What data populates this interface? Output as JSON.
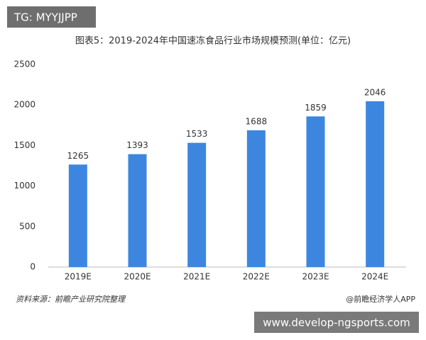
{
  "overlays": {
    "tag": "TG: MYYJJPP",
    "url": "www.develop-ngsports.com"
  },
  "chart_data": {
    "type": "bar",
    "title": "图表5：2019-2024年中国速冻食品行业市场规模预测(单位：亿元)",
    "categories": [
      "2019E",
      "2020E",
      "2021E",
      "2022E",
      "2023E",
      "2024E"
    ],
    "values": [
      1265,
      1393,
      1533,
      1688,
      1859,
      2046
    ],
    "color": "#3d86e0",
    "ylim": [
      0,
      2500
    ],
    "yticks": [
      0,
      500,
      1000,
      1500,
      2000,
      2500
    ],
    "grid": false,
    "source": "资料来源：前瞻产业研究院整理",
    "credit": "@前瞻经济学人APP"
  }
}
